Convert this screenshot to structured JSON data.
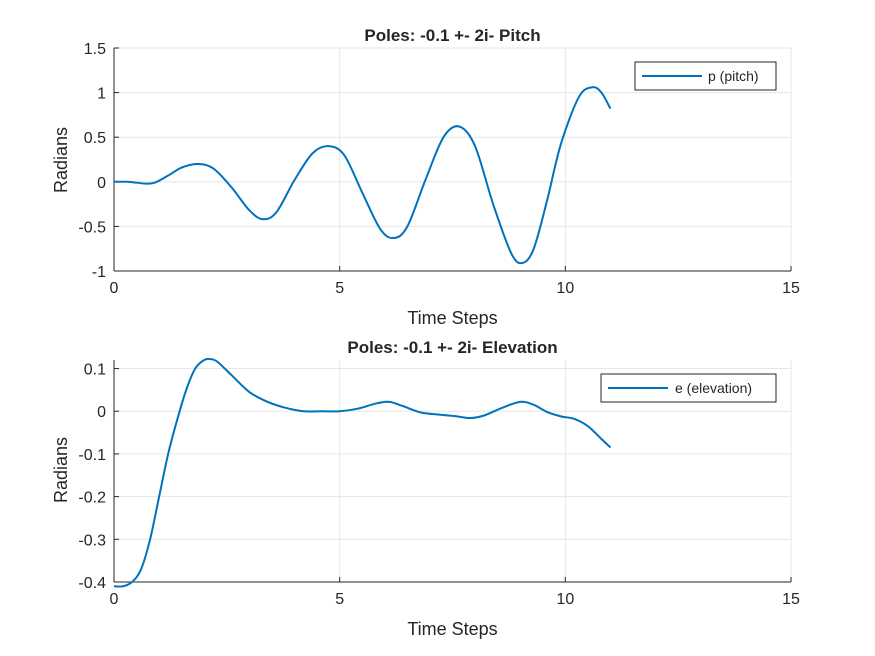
{
  "chart_data": [
    {
      "type": "line",
      "title": "Poles: -0.1 +- 2i- Pitch",
      "xlabel": "Time Steps",
      "ylabel": "Radians",
      "xlim": [
        0,
        15
      ],
      "ylim": [
        -1,
        1.5
      ],
      "xticks": [
        "0",
        "5",
        "10",
        "15"
      ],
      "yticks": [
        "-1",
        "-0.5",
        "0",
        "0.5",
        "1",
        "1.5"
      ],
      "grid": true,
      "legend_position": "top-right",
      "series": [
        {
          "name": "p (pitch)",
          "color": "#0072BD",
          "x": [
            0,
            0.3,
            0.5,
            0.7,
            0.9,
            1.2,
            1.5,
            1.85,
            2.2,
            2.6,
            3.0,
            3.3,
            3.6,
            4.0,
            4.4,
            4.75,
            5.1,
            5.5,
            5.9,
            6.2,
            6.5,
            6.9,
            7.3,
            7.65,
            8.0,
            8.4,
            8.8,
            9.05,
            9.3,
            9.6,
            9.9,
            10.3,
            10.6,
            10.8,
            11.0
          ],
          "y": [
            0.0,
            0.0,
            -0.01,
            -0.02,
            -0.01,
            0.07,
            0.16,
            0.2,
            0.15,
            -0.06,
            -0.32,
            -0.42,
            -0.34,
            0.02,
            0.32,
            0.4,
            0.3,
            -0.12,
            -0.53,
            -0.63,
            -0.5,
            0.02,
            0.5,
            0.62,
            0.4,
            -0.25,
            -0.8,
            -0.91,
            -0.75,
            -0.2,
            0.42,
            0.95,
            1.06,
            1.0,
            0.82
          ]
        }
      ]
    },
    {
      "type": "line",
      "title": "Poles: -0.1 +- 2i- Elevation",
      "xlabel": "Time Steps",
      "ylabel": "Radians",
      "xlim": [
        0,
        15
      ],
      "ylim": [
        -0.4,
        0.12
      ],
      "xticks": [
        "0",
        "5",
        "10",
        "15"
      ],
      "yticks": [
        "-0.4",
        "-0.3",
        "-0.2",
        "-0.1",
        "0",
        "0.1"
      ],
      "grid": true,
      "legend_position": "top-right",
      "series": [
        {
          "name": "e (elevation)",
          "color": "#0072BD",
          "x": [
            0,
            0.2,
            0.4,
            0.6,
            0.8,
            1.0,
            1.2,
            1.4,
            1.6,
            1.8,
            2.0,
            2.15,
            2.3,
            2.6,
            3.0,
            3.4,
            3.8,
            4.2,
            4.6,
            5.0,
            5.4,
            5.8,
            6.1,
            6.4,
            6.8,
            7.2,
            7.6,
            7.9,
            8.2,
            8.6,
            9.0,
            9.3,
            9.6,
            9.9,
            10.2,
            10.5,
            10.8,
            11.0
          ],
          "y": [
            -0.41,
            -0.41,
            -0.4,
            -0.37,
            -0.3,
            -0.2,
            -0.1,
            -0.02,
            0.05,
            0.1,
            0.12,
            0.122,
            0.115,
            0.085,
            0.045,
            0.022,
            0.008,
            0.0,
            0.0,
            0.0,
            0.006,
            0.018,
            0.022,
            0.012,
            -0.003,
            -0.008,
            -0.012,
            -0.016,
            -0.01,
            0.008,
            0.022,
            0.015,
            -0.002,
            -0.012,
            -0.018,
            -0.035,
            -0.065,
            -0.085
          ]
        }
      ]
    }
  ]
}
